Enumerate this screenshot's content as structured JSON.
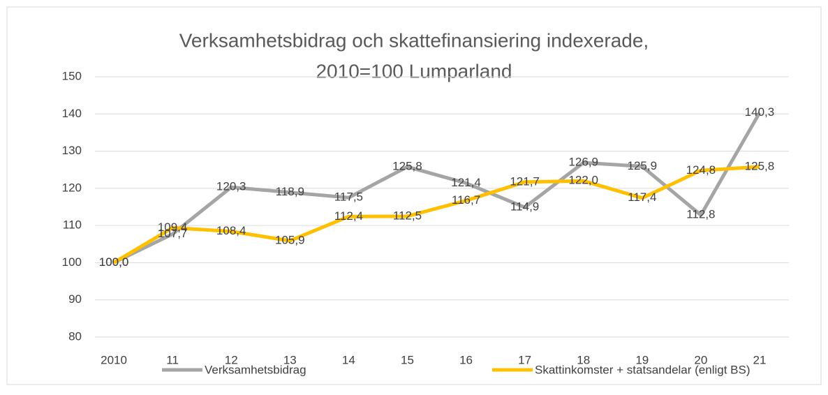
{
  "chart_data": {
    "type": "line",
    "title": [
      "Verksamhetsbidrag och skattefinansiering indexerade,",
      "2010=100    Lumparland"
    ],
    "categories": [
      "2010",
      "11",
      "12",
      "13",
      "14",
      "15",
      "16",
      "17",
      "18",
      "19",
      "20",
      "21"
    ],
    "series": [
      {
        "name": "Verksamhetsbidrag",
        "color": "#a5a5a5",
        "values": [
          100.0,
          107.7,
          120.3,
          118.9,
          117.5,
          125.8,
          121.4,
          114.9,
          126.9,
          125.9,
          112.8,
          140.3
        ],
        "value_labels": [
          "100,0",
          "107,7",
          "120,3",
          "118,9",
          "117,5",
          "125,8",
          "121,4",
          "114,9",
          "126,9",
          "125,9",
          "112,8",
          "140,3"
        ]
      },
      {
        "name": "Skattinkomster + statsandelar (enligt BS)",
        "color": "#ffc000",
        "values": [
          100.0,
          109.4,
          108.4,
          105.9,
          112.4,
          112.5,
          116.7,
          121.7,
          122.0,
          117.4,
          124.8,
          125.8
        ],
        "value_labels": [
          "100,0",
          "109,4",
          "108,4",
          "105,9",
          "112,4",
          "112,5",
          "116,7",
          "121,7",
          "122,0",
          "117,4",
          "124,8",
          "125,8"
        ]
      }
    ],
    "ylim": [
      80,
      150
    ],
    "yticks": [
      80,
      90,
      100,
      110,
      120,
      130,
      140,
      150
    ],
    "grid": true,
    "legend": "bottom"
  }
}
